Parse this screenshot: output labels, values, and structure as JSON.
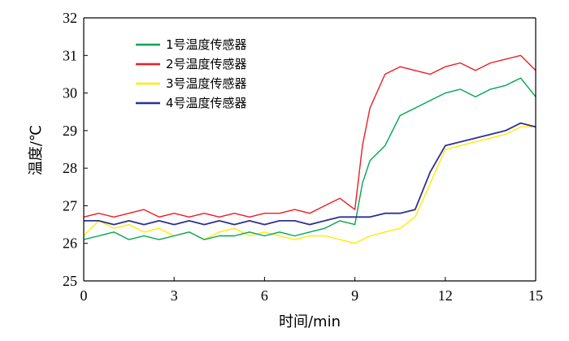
{
  "chart_data": {
    "type": "line",
    "xlabel": "时间/min",
    "ylabel": "温度/℃",
    "xlim": [
      0,
      15
    ],
    "ylim": [
      25,
      32
    ],
    "xticks": [
      0,
      3,
      6,
      9,
      12,
      15
    ],
    "yticks": [
      25,
      26,
      27,
      28,
      29,
      30,
      31,
      32
    ],
    "x_tick_labels": [
      "0",
      "3",
      "6",
      "9",
      "12",
      "15"
    ],
    "y_tick_labels": [
      "25",
      "26",
      "27",
      "28",
      "29",
      "30",
      "31",
      "32"
    ],
    "grid": false,
    "legend_position": "top-left",
    "x": [
      0,
      0.5,
      1,
      1.5,
      2,
      2.5,
      3,
      3.5,
      4,
      4.5,
      5,
      5.5,
      6,
      6.5,
      7,
      7.5,
      8,
      8.5,
      9,
      9.25,
      9.5,
      10,
      10.5,
      11,
      11.5,
      12,
      12.5,
      13,
      13.5,
      14,
      14.5,
      15
    ],
    "series": [
      {
        "name": "1号温度传感器",
        "color": "#00a651",
        "values": [
          26.1,
          26.2,
          26.3,
          26.1,
          26.2,
          26.1,
          26.2,
          26.3,
          26.1,
          26.2,
          26.2,
          26.3,
          26.2,
          26.3,
          26.2,
          26.3,
          26.4,
          26.6,
          26.5,
          27.6,
          28.2,
          28.6,
          29.4,
          29.6,
          29.8,
          30.0,
          30.1,
          29.9,
          30.1,
          30.2,
          30.4,
          29.9
        ]
      },
      {
        "name": "2号温度传感器",
        "color": "#ed1c24",
        "values": [
          26.7,
          26.8,
          26.7,
          26.8,
          26.9,
          26.7,
          26.8,
          26.7,
          26.8,
          26.7,
          26.8,
          26.7,
          26.8,
          26.8,
          26.9,
          26.8,
          27.0,
          27.2,
          26.9,
          28.6,
          29.6,
          30.5,
          30.7,
          30.6,
          30.5,
          30.7,
          30.8,
          30.6,
          30.8,
          30.9,
          31.0,
          30.6
        ]
      },
      {
        "name": "3号温度传感器",
        "color": "#ffec00",
        "values": [
          26.2,
          26.6,
          26.4,
          26.5,
          26.3,
          26.4,
          26.2,
          26.3,
          26.1,
          26.3,
          26.4,
          26.2,
          26.3,
          26.2,
          26.1,
          26.2,
          26.2,
          26.1,
          26.0,
          26.1,
          26.2,
          26.3,
          26.4,
          26.7,
          27.6,
          28.5,
          28.6,
          28.7,
          28.8,
          28.9,
          29.1,
          29.1
        ]
      },
      {
        "name": "4号温度传感器",
        "color": "#2e3192",
        "values": [
          26.6,
          26.6,
          26.5,
          26.6,
          26.5,
          26.6,
          26.5,
          26.6,
          26.5,
          26.6,
          26.5,
          26.6,
          26.5,
          26.6,
          26.6,
          26.5,
          26.6,
          26.7,
          26.7,
          26.7,
          26.7,
          26.8,
          26.8,
          26.9,
          27.9,
          28.6,
          28.7,
          28.8,
          28.9,
          29.0,
          29.2,
          29.1
        ]
      }
    ]
  }
}
